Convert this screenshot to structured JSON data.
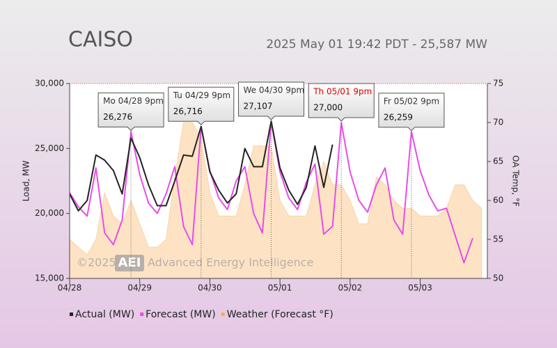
{
  "chart_data": {
    "type": "line",
    "title": "CAISO",
    "subtitle": "2025 May 01 19:42 PDT - 25,587 MW",
    "y_label": "Load, MW",
    "y2_label": "OA Temp, °F",
    "x": [
      0,
      3,
      6,
      9,
      12,
      15,
      18,
      21,
      24,
      27,
      30,
      33,
      36,
      39,
      42,
      45,
      48,
      51,
      54,
      57,
      60,
      63,
      66,
      69,
      72,
      75,
      78,
      81,
      84,
      87,
      90,
      93,
      96,
      99,
      102,
      105,
      108,
      111,
      114,
      117,
      120,
      123,
      126,
      129,
      132,
      135,
      138,
      141
    ],
    "xlim": [
      0,
      143
    ],
    "xticks": [
      {
        "value": 0,
        "label": "04/28"
      },
      {
        "value": 24,
        "label": "04/29"
      },
      {
        "value": 48,
        "label": "04/30"
      },
      {
        "value": 72,
        "label": "05/01"
      },
      {
        "value": 96,
        "label": "05/02"
      },
      {
        "value": 120,
        "label": "05/03"
      }
    ],
    "ylim": [
      15000,
      30000
    ],
    "yticks": [
      {
        "value": 15000,
        "label": "15,000"
      },
      {
        "value": 20000,
        "label": "20,000"
      },
      {
        "value": 25000,
        "label": "25,000"
      },
      {
        "value": 30000,
        "label": "30,000"
      }
    ],
    "y2lim": [
      50,
      75
    ],
    "y2ticks": [
      50,
      55,
      60,
      65,
      70,
      75
    ],
    "series": [
      {
        "name": "Weather (Forecast °F)",
        "color": "#fde3c4",
        "axis": "y2",
        "fill": true,
        "values": [
          55,
          54,
          53,
          55,
          61,
          58,
          57,
          60,
          57,
          54,
          54,
          55,
          63,
          70,
          70,
          68,
          61,
          58,
          58,
          58,
          62,
          67,
          67,
          67,
          60,
          58,
          58,
          58,
          62,
          65,
          62,
          62,
          60,
          57,
          57,
          63,
          62,
          60,
          59,
          59,
          58,
          58,
          58,
          59,
          62,
          62,
          60,
          59
        ]
      },
      {
        "name": "Forecast (MW)",
        "color": "#e84ce8",
        "fill": false,
        "values": [
          21600,
          20500,
          19800,
          23500,
          18500,
          17600,
          19500,
          26300,
          23000,
          20800,
          20000,
          21500,
          23600,
          19000,
          17600,
          26700,
          23300,
          21200,
          20300,
          22500,
          23600,
          20000,
          18500,
          27100,
          23200,
          21200,
          20300,
          22400,
          23800,
          18400,
          19000,
          27000,
          23200,
          21000,
          20100,
          22200,
          23500,
          19500,
          18400,
          26300,
          23300,
          21400,
          20200,
          20400,
          18300,
          16200,
          18100,
          null
        ]
      },
      {
        "name": "Actual (MW)",
        "color": "#222222",
        "fill": false,
        "values": [
          21500,
          20200,
          21000,
          24500,
          24100,
          23300,
          21500,
          25800,
          24300,
          22200,
          20600,
          20600,
          22500,
          24500,
          24400,
          26700,
          23200,
          21800,
          20800,
          21500,
          25000,
          23600,
          23600,
          27100,
          23500,
          21800,
          20700,
          22000,
          25200,
          22000,
          25300,
          null,
          null,
          null,
          null,
          null,
          null,
          null,
          null,
          null,
          null,
          null,
          null,
          null,
          null,
          null,
          null,
          null
        ]
      }
    ],
    "legend_order": [
      2,
      1,
      0
    ],
    "annotations": [
      {
        "label": "Mo 04/28 9pm",
        "x": 21,
        "value": 26276,
        "value_label": "26,276",
        "label_color": "#333333"
      },
      {
        "label": "Tu 04/29 9pm",
        "x": 45,
        "value": 26716,
        "value_label": "26,716",
        "label_color": "#333333"
      },
      {
        "label": "We 04/30 9pm",
        "x": 69,
        "value": 27107,
        "value_label": "27,107",
        "label_color": "#333333"
      },
      {
        "label": "Th 05/01 9pm",
        "x": 93,
        "value": 27000,
        "value_label": "27,000",
        "label_color": "#dd0000"
      },
      {
        "label": "Fr 05/02 9pm",
        "x": 117,
        "value": 26259,
        "value_label": "26,259",
        "label_color": "#333333"
      }
    ],
    "watermark": {
      "year": "©2025",
      "logo": "AEI",
      "name": "Advanced Energy Intelligence"
    }
  }
}
